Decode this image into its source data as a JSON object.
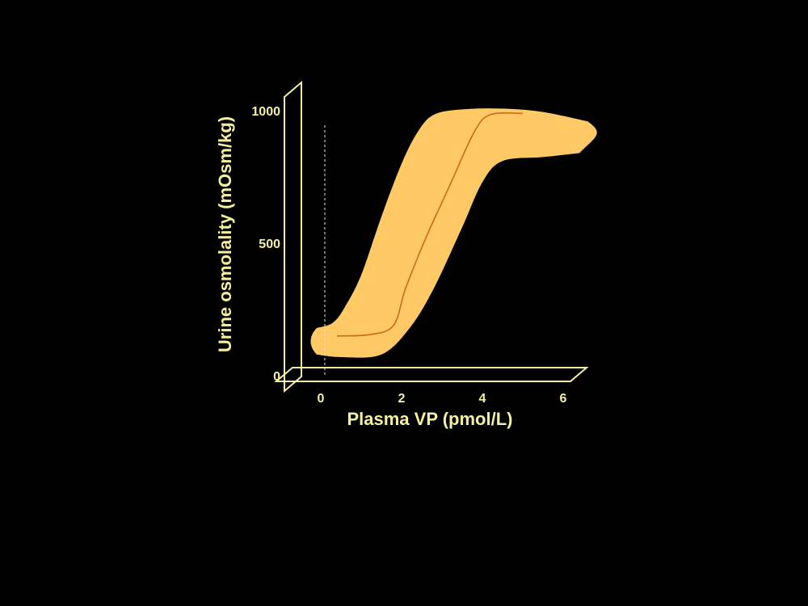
{
  "colors": {
    "background": "#000000",
    "axis": "#f5f0a0",
    "text": "#f5f0a0",
    "band": "#ffc966",
    "curve": "#cc6a1a",
    "threshold": "#e8e8e8"
  },
  "chart_data": {
    "type": "area",
    "title": "",
    "xlabel": "Plasma VP (pmol/L)",
    "ylabel": "Urine osmolality (mOsm/kg)",
    "xlim": [
      0,
      6
    ],
    "ylim": [
      0,
      1000
    ],
    "x_ticks": [
      "0",
      "2",
      "4",
      "6"
    ],
    "y_ticks": [
      "0",
      "500",
      "1000"
    ],
    "grid": false,
    "legend": "none",
    "threshold_x": 0.1,
    "band": {
      "upper": [
        {
          "x": -0.1,
          "y": 180
        },
        {
          "x": 0.3,
          "y": 200
        },
        {
          "x": 0.6,
          "y": 260
        },
        {
          "x": 1.0,
          "y": 380
        },
        {
          "x": 1.5,
          "y": 600
        },
        {
          "x": 2.0,
          "y": 800
        },
        {
          "x": 2.4,
          "y": 920
        },
        {
          "x": 2.8,
          "y": 985
        },
        {
          "x": 3.5,
          "y": 1005
        },
        {
          "x": 4.5,
          "y": 1008
        },
        {
          "x": 5.5,
          "y": 995
        },
        {
          "x": 6.6,
          "y": 960
        }
      ],
      "lower": [
        {
          "x": -0.1,
          "y": 80
        },
        {
          "x": 0.5,
          "y": 70
        },
        {
          "x": 1.5,
          "y": 80
        },
        {
          "x": 2.2,
          "y": 180
        },
        {
          "x": 2.8,
          "y": 330
        },
        {
          "x": 3.5,
          "y": 560
        },
        {
          "x": 4.0,
          "y": 730
        },
        {
          "x": 4.5,
          "y": 810
        },
        {
          "x": 5.5,
          "y": 825
        },
        {
          "x": 6.4,
          "y": 840
        }
      ]
    },
    "series": [
      {
        "points": [
          {
            "x": 0.4,
            "y": 150
          },
          {
            "x": 1.2,
            "y": 155
          },
          {
            "x": 1.8,
            "y": 190
          },
          {
            "x": 2.1,
            "y": 330
          },
          {
            "x": 2.6,
            "y": 520
          },
          {
            "x": 3.2,
            "y": 720
          },
          {
            "x": 3.8,
            "y": 920
          },
          {
            "x": 4.2,
            "y": 985
          },
          {
            "x": 5.0,
            "y": 990
          }
        ]
      }
    ]
  }
}
